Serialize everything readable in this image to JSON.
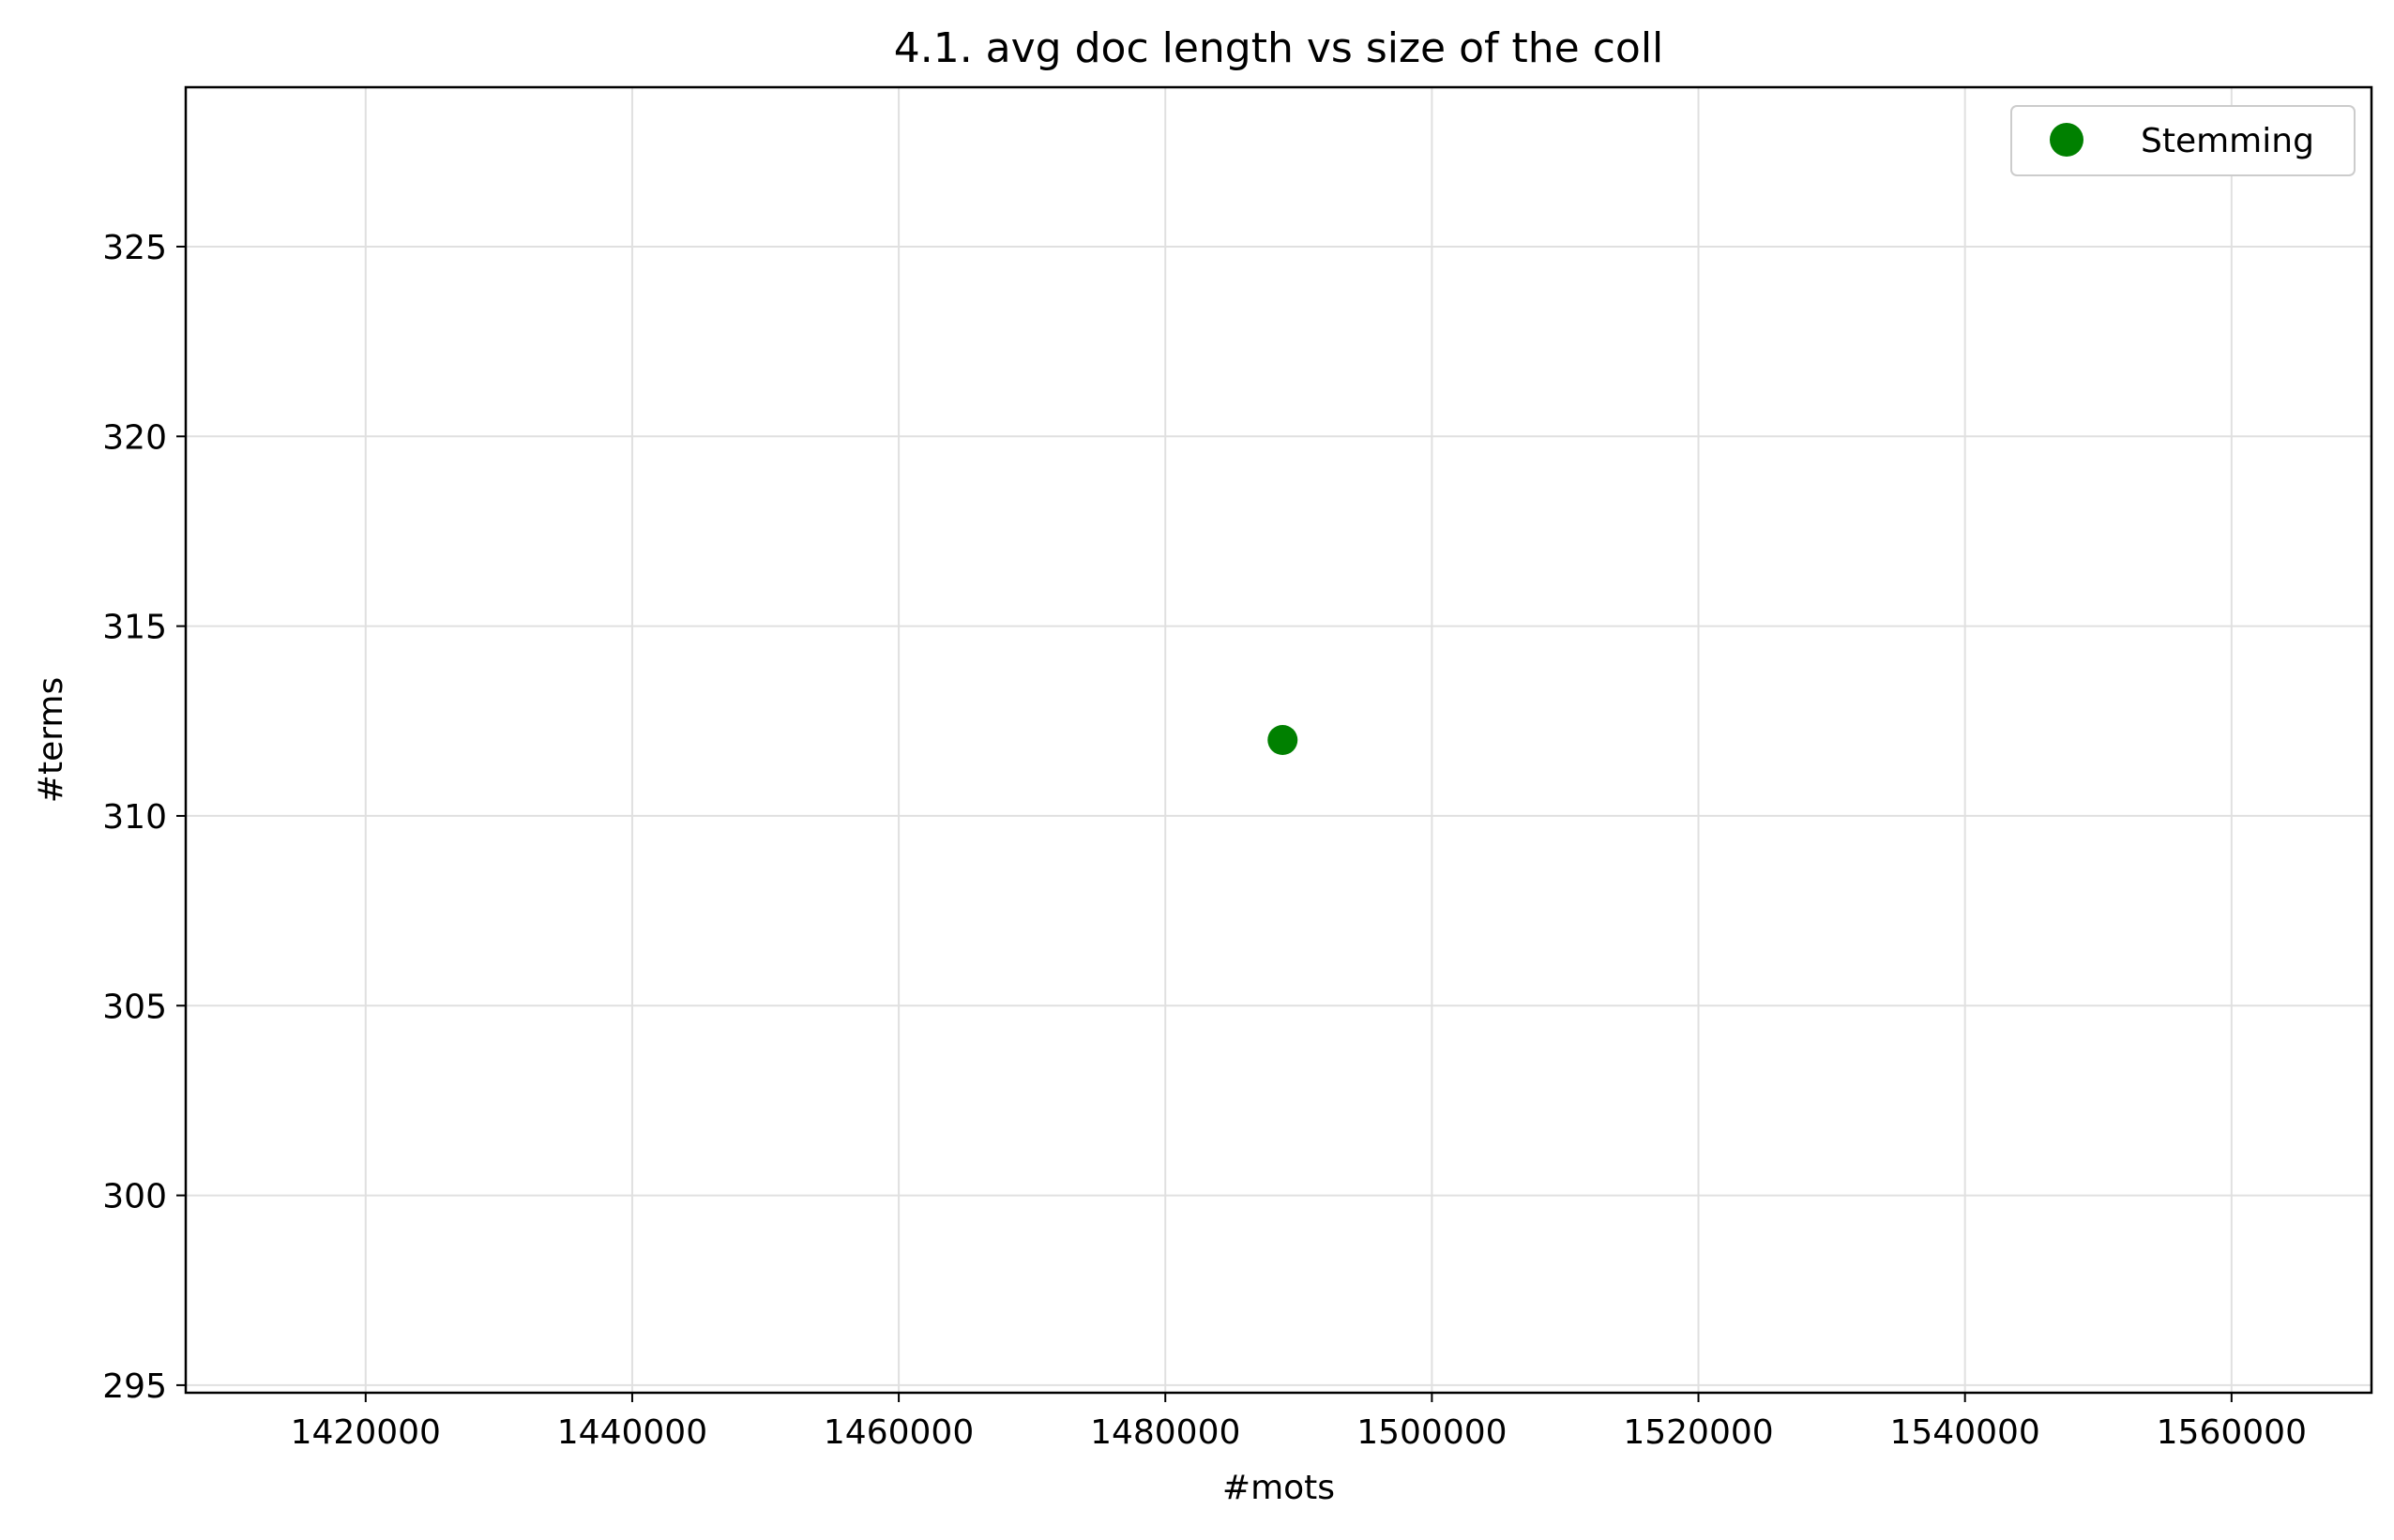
{
  "chart_data": {
    "type": "scatter",
    "title": "4.1. avg doc length vs size of the coll",
    "xlabel": "#mots",
    "ylabel": "#terms",
    "xlim": [
      1406500,
      1570500
    ],
    "ylim": [
      294.8,
      329.2
    ],
    "xticks": [
      1420000,
      1440000,
      1460000,
      1480000,
      1500000,
      1520000,
      1540000,
      1560000
    ],
    "yticks": [
      295,
      300,
      305,
      310,
      315,
      320,
      325
    ],
    "grid": true,
    "legend": {
      "position": "upper right"
    },
    "series": [
      {
        "name": "Stemming",
        "color": "#008000",
        "marker": "circle",
        "points": [
          {
            "x": 1488800,
            "y": 312
          }
        ]
      }
    ]
  }
}
